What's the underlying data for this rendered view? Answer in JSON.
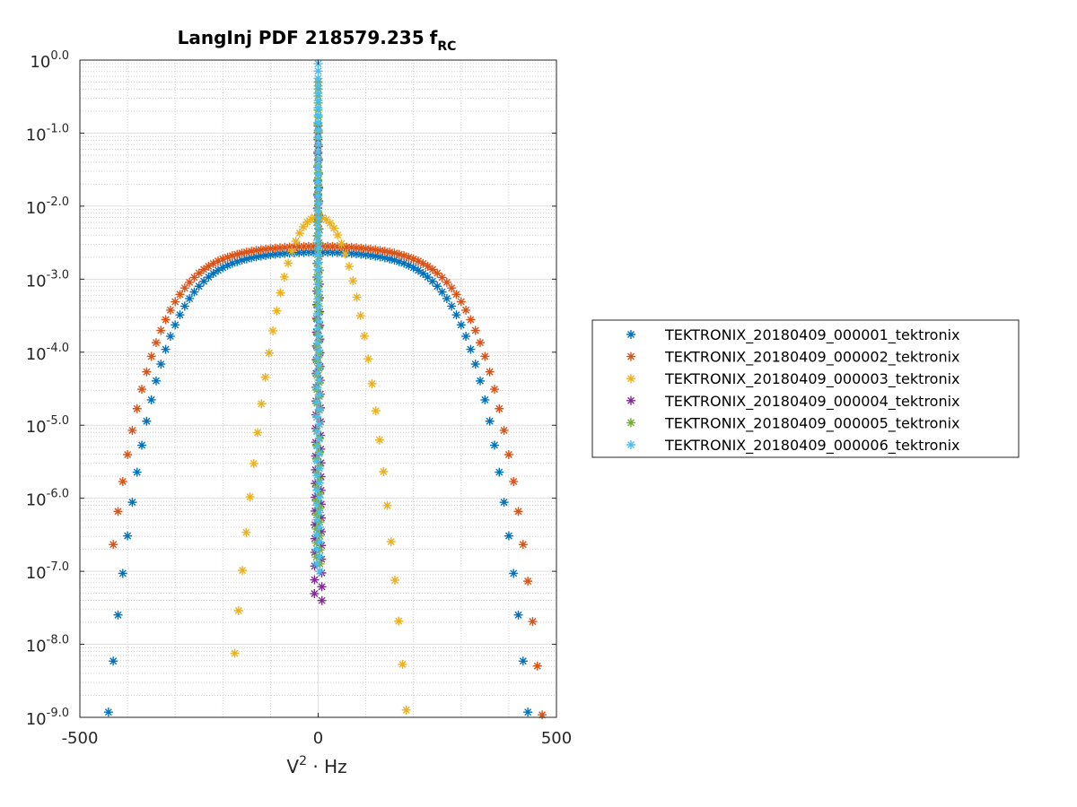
{
  "chart_data": {
    "type": "scatter",
    "title": "LangInj PDF 218579.235",
    "title_subscript_base": "f",
    "title_subscript": "RC",
    "xlabel_base": "V",
    "xlabel_sup": "2",
    "xlabel_rest": " · Hz",
    "ylabel": "",
    "xlim": [
      -500,
      500
    ],
    "ylim": [
      -9,
      0
    ],
    "yscale": "log",
    "grid": true,
    "minor_grid": true,
    "marker": "*",
    "legend_position": "right",
    "x_ticks": [
      {
        "value": -500,
        "label": "-500"
      },
      {
        "value": 0,
        "label": "0"
      },
      {
        "value": 500,
        "label": "500"
      }
    ],
    "y_ticks": [
      {
        "value": 0,
        "base": "10",
        "exp": "0.0"
      },
      {
        "value": -1,
        "base": "10",
        "exp": "-1.0"
      },
      {
        "value": -2,
        "base": "10",
        "exp": "-2.0"
      },
      {
        "value": -3,
        "base": "10",
        "exp": "-3.0"
      },
      {
        "value": -4,
        "base": "10",
        "exp": "-4.0"
      },
      {
        "value": -5,
        "base": "10",
        "exp": "-5.0"
      },
      {
        "value": -6,
        "base": "10",
        "exp": "-6.0"
      },
      {
        "value": -7,
        "base": "10",
        "exp": "-7.0"
      },
      {
        "value": -8,
        "base": "10",
        "exp": "-8.0"
      },
      {
        "value": -9,
        "base": "10",
        "exp": "-9.0"
      }
    ],
    "series": [
      {
        "name": "TEKTRONIX_20180409_000001_tektronix",
        "color": "#0072BD",
        "shape": "wide",
        "peak_x": 0,
        "peak_log": -2.63,
        "max_log": -9.0,
        "step": 10,
        "x_min": -450,
        "x_max": 450
      },
      {
        "name": "TEKTRONIX_20180409_000002_tektronix",
        "color": "#D95319",
        "shape": "wide",
        "peak_x": 0,
        "peak_log": -2.55,
        "max_log": -9.0,
        "step": 10,
        "x_min": -430,
        "x_max": 480
      },
      {
        "name": "TEKTRONIX_20180409_000003_tektronix",
        "color": "#EDB120",
        "shape": "medium",
        "peak_x": 0,
        "peak_log": -2.15,
        "max_log": -8.9,
        "step": 8,
        "x_min": -175,
        "x_max": 185
      },
      {
        "name": "TEKTRONIX_20180409_000004_tektronix",
        "color": "#7E2F8E",
        "shape": "narrow",
        "peak_x": 0,
        "peak_log": -0.9,
        "max_log": -7.4,
        "step": 1,
        "x_min": -8,
        "x_max": 8
      },
      {
        "name": "TEKTRONIX_20180409_000005_tektronix",
        "color": "#77AC30",
        "shape": "narrow",
        "peak_x": 0,
        "peak_log": -0.3,
        "max_log": -6.9,
        "step": 1,
        "x_min": -4,
        "x_max": 4
      },
      {
        "name": "TEKTRONIX_20180409_000006_tektronix",
        "color": "#4DBEEE",
        "shape": "narrow",
        "peak_x": 0,
        "peak_log": -0.05,
        "max_log": -7.0,
        "step": 1,
        "x_min": -3,
        "x_max": 3
      }
    ]
  }
}
